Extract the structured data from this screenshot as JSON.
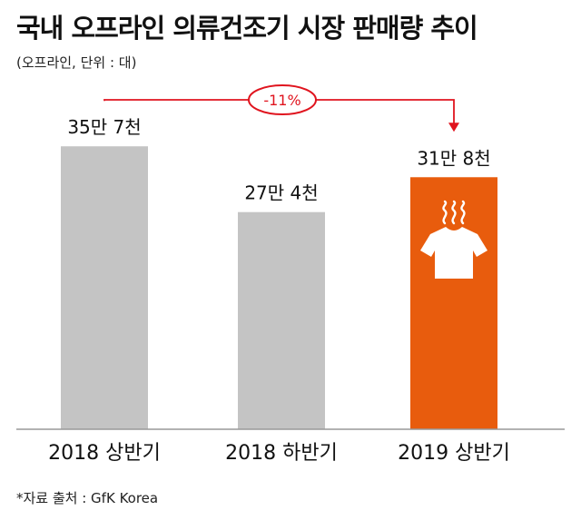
{
  "title": "국내 오프라인 의류건조기 시장 판매량 추이",
  "subtitle": "(오프라인, 단위 : 대)",
  "source": "*자료 출처 : GfK Korea",
  "colors": {
    "bar_default": "#c4c4c4",
    "bar_highlight": "#e85c0d",
    "accent": "#e0141e"
  },
  "icon": "tshirt-steam-icon",
  "chart_data": {
    "type": "bar",
    "title": "국내 오프라인 의류건조기 시장 판매량 추이",
    "categories": [
      "2018 상반기",
      "2018 하반기",
      "2019 상반기"
    ],
    "values": [
      357000,
      274000,
      318000
    ],
    "data_labels": [
      "35만 7천",
      "27만 4천",
      "31만 8천"
    ],
    "highlight_index": 2,
    "ylim": [
      0,
      450000
    ],
    "change_annotation": {
      "from": 0,
      "to": 2,
      "label": "-11%"
    },
    "grid": false,
    "legend": "none"
  }
}
